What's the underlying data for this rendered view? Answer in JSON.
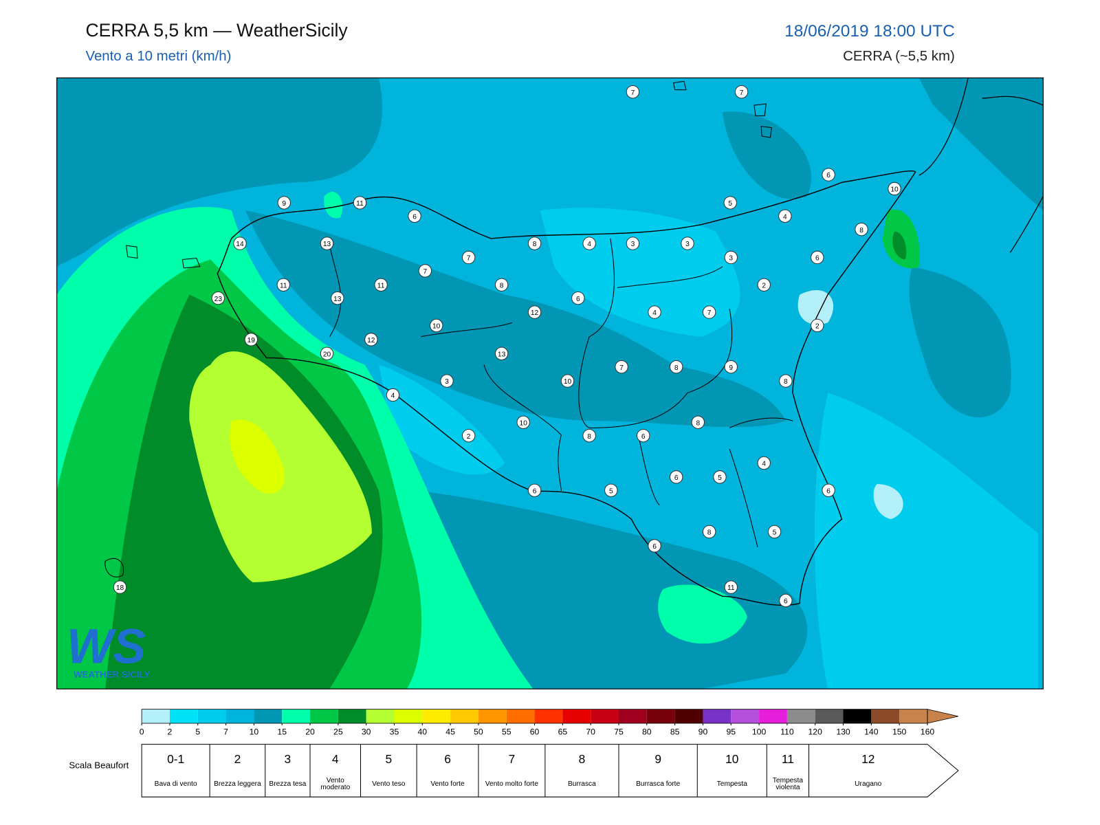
{
  "header": {
    "title": "CERRA 5,5 km — WeatherSicily",
    "subtitle": "Vento a 10 metri (km/h)",
    "datetime": "18/06/2019 18:00 UTC",
    "model": "CERRA (~5,5 km)"
  },
  "logo": {
    "mark": "WS",
    "name": "WEATHER SICILY"
  },
  "stations": [
    7,
    7,
    6,
    10,
    9,
    11,
    6,
    5,
    4,
    8,
    14,
    13,
    8,
    4,
    3,
    3,
    7,
    3,
    6,
    7,
    11,
    11,
    8,
    2,
    23,
    13,
    6,
    12,
    4,
    7,
    10,
    2,
    19,
    12,
    20,
    13,
    7,
    8,
    9,
    3,
    10,
    8,
    4,
    10,
    8,
    2,
    8,
    6,
    4,
    6,
    5,
    6,
    5,
    6,
    8,
    5,
    6,
    11,
    6,
    18
  ],
  "colorbar": {
    "ticks": [
      0,
      2,
      5,
      7,
      10,
      15,
      20,
      25,
      30,
      35,
      40,
      45,
      50,
      55,
      60,
      65,
      70,
      75,
      80,
      85,
      90,
      95,
      100,
      110,
      120,
      130,
      140,
      150,
      160
    ],
    "colors": [
      "#b4f0fa",
      "#00e1f5",
      "#00cdee",
      "#00b4dc",
      "#0096b4",
      "#00ffaa",
      "#00c846",
      "#008c28",
      "#b4ff32",
      "#dcff00",
      "#ffeb00",
      "#ffc800",
      "#ff9600",
      "#ff6e00",
      "#ff3200",
      "#e60000",
      "#c80014",
      "#a0001e",
      "#78000a",
      "#500000",
      "#7832c8",
      "#b450dc",
      "#e61edc",
      "#8c8c8c",
      "#5a5a5a",
      "#000000",
      "#8c4b28",
      "#c8824b"
    ]
  },
  "beaufort": {
    "label": "Scala Beaufort",
    "levels": [
      {
        "force": "0-1",
        "desc": "Bava di vento"
      },
      {
        "force": "2",
        "desc": "Brezza leggera"
      },
      {
        "force": "3",
        "desc": "Brezza tesa"
      },
      {
        "force": "4",
        "desc": "Vento moderato"
      },
      {
        "force": "5",
        "desc": "Vento teso"
      },
      {
        "force": "6",
        "desc": "Vento forte"
      },
      {
        "force": "7",
        "desc": "Vento molto forte"
      },
      {
        "force": "8",
        "desc": "Burrasca"
      },
      {
        "force": "9",
        "desc": "Burrasca forte"
      },
      {
        "force": "10",
        "desc": "Tempesta"
      },
      {
        "force": "11",
        "desc": "Tempesta violenta"
      },
      {
        "force": "12",
        "desc": "Uragano"
      }
    ]
  }
}
